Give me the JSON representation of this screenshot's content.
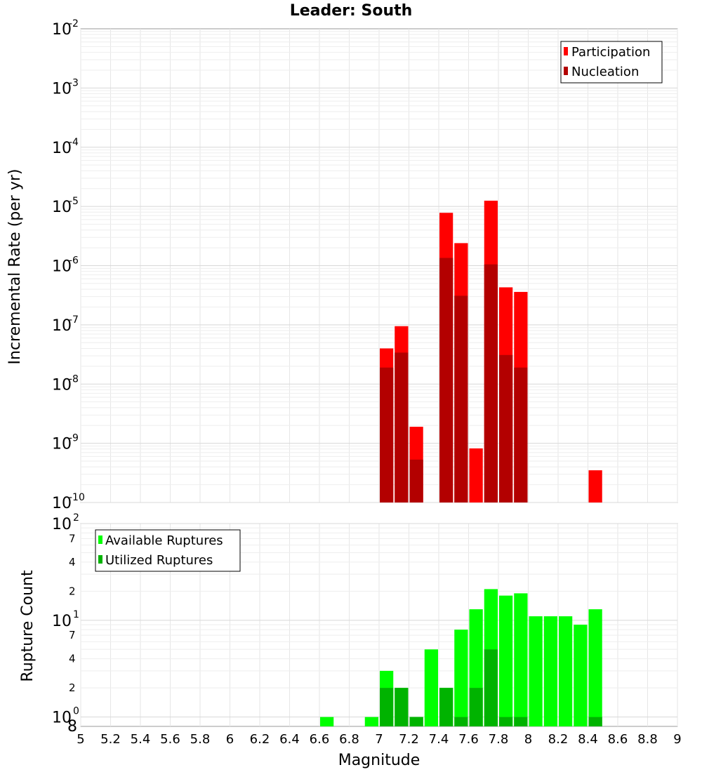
{
  "chart_data": [
    {
      "type": "bar",
      "title": "Leader: South",
      "xlabel": "Magnitude",
      "ylabel": "Incremental Rate (per yr)",
      "yscale": "log",
      "ylim": [
        1e-10,
        0.01
      ],
      "xlim": [
        5,
        9
      ],
      "bin_width": 0.1,
      "grid": true,
      "legend_position": "top-right",
      "y_ticks": [
        {
          "base": "10",
          "exp": "-10"
        },
        {
          "base": "10",
          "exp": "-9"
        },
        {
          "base": "10",
          "exp": "-8"
        },
        {
          "base": "10",
          "exp": "-7"
        },
        {
          "base": "10",
          "exp": "-6"
        },
        {
          "base": "10",
          "exp": "-5"
        },
        {
          "base": "10",
          "exp": "-4"
        },
        {
          "base": "10",
          "exp": "-3"
        },
        {
          "base": "10",
          "exp": "-2"
        }
      ],
      "series": [
        {
          "name": "Participation",
          "color": "#ff0000",
          "x": [
            7.05,
            7.15,
            7.25,
            7.45,
            7.55,
            7.65,
            7.75,
            7.85,
            7.95,
            8.45
          ],
          "values": [
            4e-08,
            9.5e-08,
            1.9e-09,
            7.8e-06,
            2.4e-06,
            8.2e-10,
            1.25e-05,
            4.3e-07,
            3.6e-07,
            3.5e-10
          ]
        },
        {
          "name": "Nucleation",
          "color": "#b30000",
          "x": [
            7.05,
            7.15,
            7.25,
            7.45,
            7.55,
            7.75,
            7.85,
            7.95
          ],
          "values": [
            1.9e-08,
            3.4e-08,
            5.3e-10,
            1.35e-06,
            3.1e-07,
            1.05e-06,
            3.1e-08,
            1.9e-08
          ]
        }
      ]
    },
    {
      "type": "bar",
      "xlabel": "Magnitude",
      "ylabel": "Rupture Count",
      "yscale": "log",
      "ylim": [
        0.8,
        100
      ],
      "xlim": [
        5,
        9
      ],
      "bin_width": 0.1,
      "grid": true,
      "legend_position": "top-left",
      "x_ticks": [
        "5",
        "5.2",
        "5.4",
        "5.6",
        "5.8",
        "6",
        "6.2",
        "6.4",
        "6.6",
        "6.8",
        "7",
        "7.2",
        "7.4",
        "7.6",
        "7.8",
        "8",
        "8.2",
        "8.4",
        "8.6",
        "8.8",
        "9"
      ],
      "y_major_ticks": [
        {
          "base": "10",
          "exp": "0",
          "value": 1
        },
        {
          "base": "10",
          "exp": "1",
          "value": 10
        },
        {
          "base": "10",
          "exp": "2",
          "value": 100
        }
      ],
      "y_minor_ticks": [
        {
          "label": "8",
          "value": 0.8
        },
        {
          "label": "2",
          "value": 2
        },
        {
          "label": "4",
          "value": 4
        },
        {
          "label": "7",
          "value": 7
        },
        {
          "label": "2",
          "value": 20
        },
        {
          "label": "4",
          "value": 40
        },
        {
          "label": "7",
          "value": 70
        }
      ],
      "series": [
        {
          "name": "Available Ruptures",
          "color": "#00ff00",
          "x": [
            6.65,
            6.95,
            7.05,
            7.15,
            7.25,
            7.35,
            7.45,
            7.55,
            7.65,
            7.75,
            7.85,
            7.95,
            8.05,
            8.15,
            8.25,
            8.35,
            8.45
          ],
          "values": [
            1,
            1,
            3,
            2,
            1,
            5,
            2,
            8,
            13,
            21,
            18,
            19,
            11,
            11,
            11,
            9,
            13
          ]
        },
        {
          "name": "Utilized Ruptures",
          "color": "#00b300",
          "x": [
            7.05,
            7.15,
            7.25,
            7.45,
            7.55,
            7.65,
            7.75,
            7.85,
            7.95,
            8.45
          ],
          "values": [
            2,
            2,
            1,
            2,
            1,
            2,
            5,
            1,
            1,
            1
          ]
        }
      ]
    }
  ]
}
